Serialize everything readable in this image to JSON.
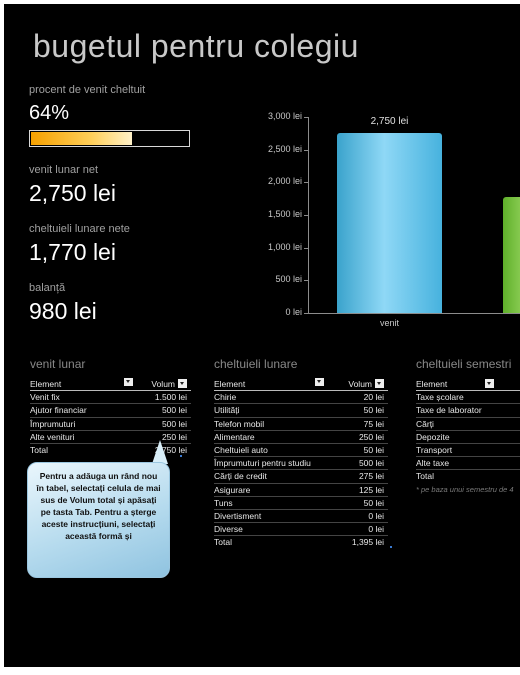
{
  "title": "bugetul pentru colegiu",
  "summary": {
    "spent_label": "procent de venit cheltuit",
    "spent_value": "64%",
    "spent_fraction": 0.64,
    "income_label": "venit lunar net",
    "income_value": "2,750 lei",
    "expenses_label": "cheltuieli lunare nete",
    "expenses_value": "1,770 lei",
    "balance_label": "balanță",
    "balance_value": "980 lei"
  },
  "chart_data": {
    "type": "bar",
    "categories": [
      "venit",
      ""
    ],
    "values": [
      2750,
      1770
    ],
    "data_labels": [
      "2,750 lei",
      ""
    ],
    "ylim": [
      0,
      3000
    ],
    "yticks": [
      "0 lei",
      "500 lei",
      "1,000 lei",
      "1,500 lei",
      "2,000 lei",
      "2,500 lei",
      "3,000 lei"
    ],
    "colors": [
      "#5ec4ec",
      "#7ccb48"
    ],
    "grid": false
  },
  "income_table": {
    "title": "venit lunar",
    "col_element": "Element",
    "col_value": "Volum",
    "rows": [
      {
        "element": "Venit fix",
        "value": "1.500 lei"
      },
      {
        "element": "Ajutor financiar",
        "value": "500 lei"
      },
      {
        "element": "Împrumuturi",
        "value": "500 lei"
      },
      {
        "element": "Alte venituri",
        "value": "250 lei"
      }
    ],
    "total_label": "Total",
    "total_value": "2,750 lei"
  },
  "monthly_table": {
    "title": "cheltuieli lunare",
    "col_element": "Element",
    "col_value": "Volum",
    "rows": [
      {
        "element": "Chirie",
        "value": "20 lei"
      },
      {
        "element": "Utilități",
        "value": "50 lei"
      },
      {
        "element": "Telefon mobil",
        "value": "75 lei"
      },
      {
        "element": "Alimentare",
        "value": "250 lei"
      },
      {
        "element": "Cheltuieli auto",
        "value": "50 lei"
      },
      {
        "element": "Împrumuturi pentru studiu",
        "value": "500 lei"
      },
      {
        "element": "Cărți de credit",
        "value": "275 lei"
      },
      {
        "element": "Asigurare",
        "value": "125 lei"
      },
      {
        "element": "Tuns",
        "value": "50 lei"
      },
      {
        "element": "Divertisment",
        "value": "0 lei"
      },
      {
        "element": "Diverse",
        "value": "0 lei"
      }
    ],
    "total_label": "Total",
    "total_value": "1,395 lei"
  },
  "semester_table": {
    "title": "cheltuieli semestri",
    "col_element": "Element",
    "rows": [
      {
        "element": "Taxe școlare"
      },
      {
        "element": "Taxe de laborator"
      },
      {
        "element": "Cărți"
      },
      {
        "element": "Depozite"
      },
      {
        "element": "Transport"
      },
      {
        "element": "Alte taxe"
      }
    ],
    "total_label": "Total",
    "note": "* pe baza unui semestru de 4"
  },
  "callout": {
    "text": "Pentru a adăuga un rând nou în tabel, selectați celula de mai sus de Volum total și apăsați pe tasta Tab. Pentru a șterge aceste instrucțiuni, selectați această formă și"
  }
}
